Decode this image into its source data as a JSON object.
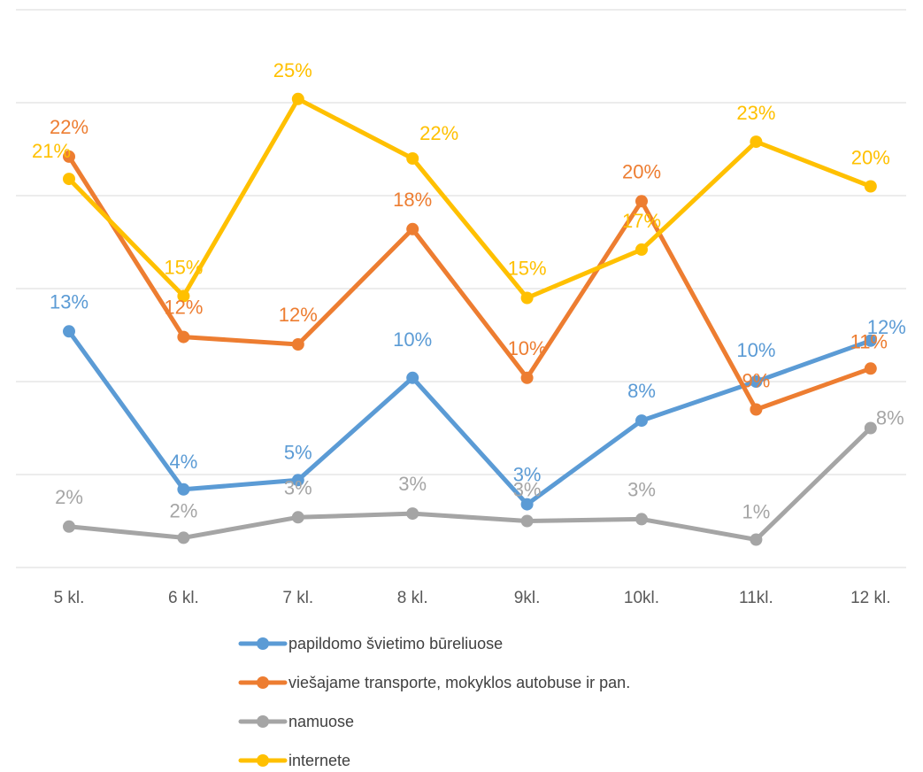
{
  "chart_data": {
    "type": "line",
    "title": "",
    "xlabel": "",
    "ylabel": "",
    "categories": [
      "5 kl.",
      "6 kl.",
      "7 kl.",
      "8 kl.",
      "9kl.",
      "10kl.",
      "11kl.",
      "12 kl."
    ],
    "ylim": [
      0,
      30
    ],
    "y_gridlines": [
      0,
      5,
      10,
      15,
      20,
      25,
      30
    ],
    "y_tick_labels_visible": false,
    "grid": true,
    "legend_position": "bottom",
    "series": [
      {
        "name": "papildomo švietimo būreliuose",
        "color": "#5B9BD5",
        "values": [
          12.7,
          4.2,
          4.7,
          10.2,
          3.4,
          7.9,
          10.0,
          12.2
        ],
        "labels": [
          "13%",
          "4%",
          "5%",
          "10%",
          "3%",
          "8%",
          "10%",
          "12%"
        ]
      },
      {
        "name": "viešajame transporte, mokyklos autobuse ir pan.",
        "color": "#ED7D31",
        "values": [
          22.1,
          12.4,
          12.0,
          18.2,
          10.2,
          19.7,
          8.5,
          10.7
        ],
        "labels": [
          "22%",
          "12%",
          "12%",
          "18%",
          "10%",
          "20%",
          "9%",
          "11%"
        ]
      },
      {
        "name": "namuose",
        "color": "#A5A5A5",
        "values": [
          2.2,
          1.6,
          2.7,
          2.9,
          2.5,
          2.6,
          1.5,
          7.5
        ],
        "labels": [
          "2%",
          "2%",
          "3%",
          "3%",
          "3%",
          "3%",
          "1%",
          "8%"
        ]
      },
      {
        "name": "internete",
        "color": "#FFC000",
        "values": [
          20.9,
          14.6,
          25.2,
          22.0,
          14.5,
          17.1,
          22.9,
          20.5
        ],
        "labels": [
          "21%",
          "15%",
          "25%",
          "22%",
          "15%",
          "17%",
          "23%",
          "20%"
        ]
      }
    ]
  }
}
